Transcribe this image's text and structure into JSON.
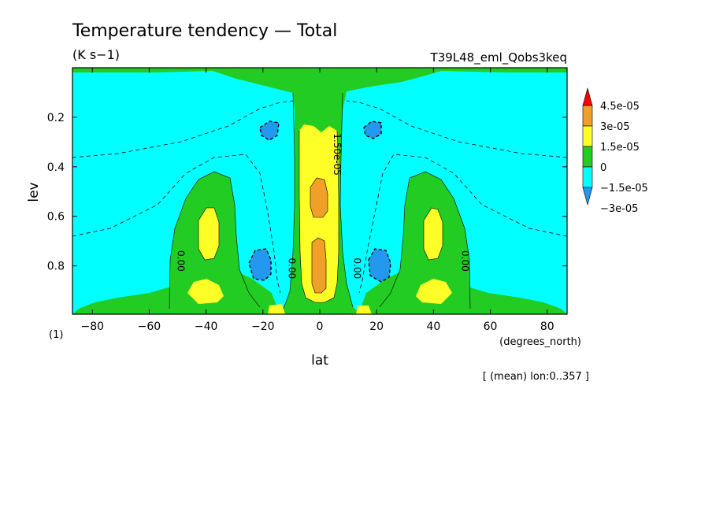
{
  "chart_data": {
    "type": "contour",
    "title": "Temperature tendency — Total",
    "units": "(K s−1)",
    "run_label": "T39L48_eml_Qobs3keq",
    "xlabel": "lat",
    "x_units": "(degrees_north)",
    "ylabel": "lev",
    "y_units": "(1)",
    "subset_note": "[ (mean) lon:0..357 ]",
    "xlim": [
      -87,
      87
    ],
    "ylim": [
      0.995,
      0.0
    ],
    "x_ticks": [
      -80,
      -60,
      -40,
      -20,
      0,
      20,
      40,
      60,
      80
    ],
    "y_ticks": [
      0.2,
      0.4,
      0.6,
      0.8
    ],
    "colorbar": {
      "labels": [
        "4.5e-05",
        "3e-05",
        "1.5e-05",
        "0",
        "−1.5e-05",
        "−3e-05"
      ],
      "colors": [
        "#ff0000",
        "#f0a028",
        "#ffff28",
        "#22cc22",
        "#00ffff",
        "#2299ee"
      ]
    },
    "contour_labels": [
      {
        "text": "0.00",
        "lat": -50,
        "lev": 0.78
      },
      {
        "text": "0.00",
        "lat": -11,
        "lev": 0.81
      },
      {
        "text": "0.00",
        "lat": 12,
        "lev": 0.81
      },
      {
        "text": "0.00",
        "lat": 50,
        "lev": 0.78
      },
      {
        "text": "1.50e-05",
        "lat": 5,
        "lev": 0.35
      }
    ],
    "regions": [
      {
        "level": "0 to 1.5e-05",
        "color": "#22cc22",
        "description": "top band, central tower lev 0.1-1.0, mid-lat columns 20-60 deg, surface band"
      },
      {
        "level": "1.5e-05 to 3e-05",
        "color": "#ffff28",
        "description": "equatorial column lev 0.25-0.95, blobs at ±40 lat lev 0.6-0.75 and near surface"
      },
      {
        "level": "3e-05 to 4.5e-05",
        "color": "#f0a028",
        "description": "equator blobs near lev 0.5 and lev 0.7-0.95"
      },
      {
        "level": "-3e-05 to -1.5e-05",
        "color": "#2299ee",
        "description": "blobs at ±20 lat near lev 0.27 and lev 0.8"
      }
    ]
  }
}
